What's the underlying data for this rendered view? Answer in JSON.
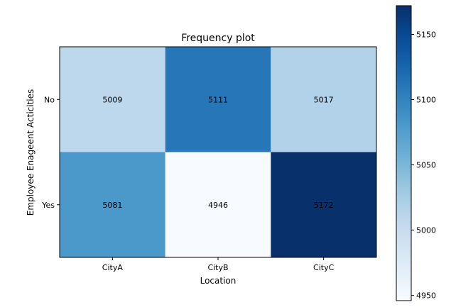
{
  "chart_data": {
    "type": "heatmap",
    "title": "Frequency plot",
    "xlabel": "Location",
    "ylabel": "Employee Enageent Acticities",
    "x_categories": [
      "CityA",
      "CityB",
      "CityC"
    ],
    "y_categories": [
      "No",
      "Yes"
    ],
    "values": [
      [
        5009,
        5111,
        5017
      ],
      [
        5081,
        4946,
        5172
      ]
    ],
    "colormap": "Blues",
    "colorbar": {
      "min": 4946,
      "max": 5172,
      "ticks": [
        4950,
        5000,
        5050,
        5100,
        5150
      ]
    },
    "grid": false
  }
}
